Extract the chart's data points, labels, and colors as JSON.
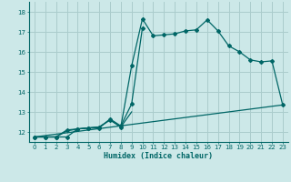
{
  "xlabel": "Humidex (Indice chaleur)",
  "bg_color": "#cce8e8",
  "grid_color": "#aacccc",
  "line_color": "#006666",
  "xlim": [
    -0.5,
    23.5
  ],
  "ylim": [
    11.5,
    18.5
  ],
  "xticks": [
    0,
    1,
    2,
    3,
    4,
    5,
    6,
    7,
    8,
    9,
    10,
    11,
    12,
    13,
    14,
    15,
    16,
    17,
    18,
    19,
    20,
    21,
    22,
    23
  ],
  "yticks": [
    12,
    13,
    14,
    15,
    16,
    17,
    18
  ],
  "line1_x": [
    0,
    1,
    2,
    3,
    4,
    5,
    6,
    7,
    8,
    9,
    10,
    11,
    12,
    13,
    14,
    15,
    16,
    17,
    18,
    19,
    20,
    21,
    22,
    23
  ],
  "line1_y": [
    11.75,
    11.75,
    11.75,
    12.1,
    12.15,
    12.2,
    12.25,
    12.6,
    12.25,
    15.3,
    17.65,
    16.8,
    16.85,
    16.9,
    17.05,
    17.1,
    17.6,
    17.05,
    16.3,
    16.0,
    15.6,
    15.5,
    15.55,
    13.35
  ],
  "line2_x": [
    0,
    1,
    2,
    3,
    4,
    5,
    6,
    7,
    8,
    9,
    10
  ],
  "line2_y": [
    11.75,
    11.75,
    11.75,
    11.75,
    12.15,
    12.2,
    12.2,
    12.65,
    12.3,
    13.4,
    17.2
  ],
  "line3_x": [
    0,
    2,
    3,
    4,
    5,
    6,
    7,
    8,
    9
  ],
  "line3_y": [
    11.75,
    11.75,
    12.05,
    12.15,
    12.2,
    12.25,
    12.6,
    12.25,
    13.0
  ],
  "line4_x": [
    0,
    23
  ],
  "line4_y": [
    11.75,
    13.35
  ]
}
